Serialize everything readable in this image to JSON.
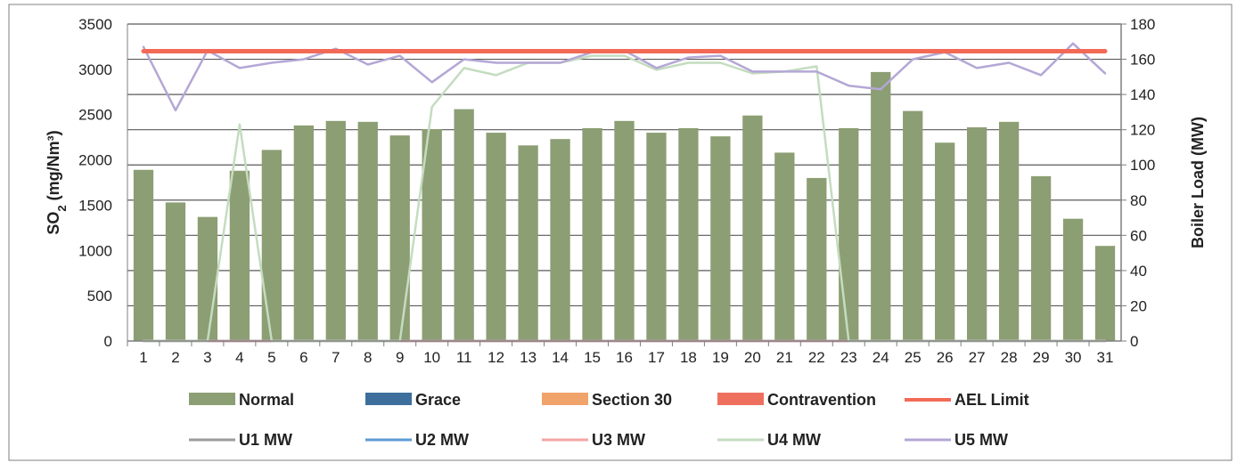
{
  "chart_data": {
    "type": "bar",
    "categories": [
      "1",
      "2",
      "3",
      "4",
      "5",
      "6",
      "7",
      "8",
      "9",
      "10",
      "11",
      "12",
      "13",
      "14",
      "15",
      "16",
      "17",
      "18",
      "19",
      "20",
      "21",
      "22",
      "23",
      "24",
      "25",
      "26",
      "27",
      "28",
      "29",
      "30",
      "31"
    ],
    "y_left": {
      "label_main": "SO",
      "label_sub": "2",
      "label_tail": " (mg/Nm³)",
      "lim": [
        0,
        3500
      ],
      "ticks": [
        "0",
        "500",
        "1000",
        "1500",
        "2000",
        "2500",
        "3000",
        "3500"
      ]
    },
    "y_right": {
      "label": "Boiler Load (MW)",
      "lim": [
        0,
        180
      ],
      "ticks": [
        "0",
        "20",
        "40",
        "60",
        "80",
        "100",
        "120",
        "140",
        "160",
        "180"
      ]
    },
    "grid": true,
    "legend_placement": "bottom",
    "bar_series": [
      {
        "name": "Normal",
        "color": "#8c9e73",
        "values": [
          1890,
          1530,
          1370,
          1880,
          2110,
          2380,
          2430,
          2420,
          2270,
          2340,
          2560,
          2300,
          2160,
          2230,
          2350,
          2430,
          2300,
          2350,
          2260,
          2490,
          2080,
          1800,
          2350,
          2970,
          2540,
          2190,
          2360,
          2420,
          1820,
          1350,
          1050
        ]
      },
      {
        "name": "Grace",
        "color": "#3d6e9c",
        "values": []
      },
      {
        "name": "Section 30",
        "color": "#f0a36a",
        "values": []
      },
      {
        "name": "Contravention",
        "color": "#ef6f5f",
        "values": []
      }
    ],
    "line_series": [
      {
        "name": "AEL Limit",
        "axis": "left",
        "color": "#f26a55",
        "width": 5,
        "values": [
          3200,
          3200,
          3200,
          3200,
          3200,
          3200,
          3200,
          3200,
          3200,
          3200,
          3200,
          3200,
          3200,
          3200,
          3200,
          3200,
          3200,
          3200,
          3200,
          3200,
          3200,
          3200,
          3200,
          3200,
          3200,
          3200,
          3200,
          3200,
          3200,
          3200,
          3200
        ]
      },
      {
        "name": "U1 MW",
        "axis": "right",
        "color": "#9b9b9b",
        "width": 2.5,
        "values": [
          0,
          0,
          0,
          0,
          0,
          0,
          0,
          0,
          0,
          0,
          0,
          0,
          0,
          0,
          0,
          0,
          0,
          0,
          0,
          0,
          0,
          0,
          0,
          0,
          0,
          0,
          0,
          0,
          0,
          0,
          0
        ]
      },
      {
        "name": "U2 MW",
        "axis": "right",
        "color": "#5b9bd5",
        "width": 2.5,
        "values": [
          0,
          0,
          0,
          0,
          0,
          0,
          0,
          0,
          0,
          0,
          0,
          0,
          0,
          0,
          0,
          0,
          0,
          0,
          0,
          0,
          0,
          0,
          0,
          0,
          0,
          0,
          0,
          0,
          0,
          0,
          0
        ]
      },
      {
        "name": "U3 MW",
        "axis": "right",
        "color": "#f4a5a5",
        "width": 2.5,
        "values": [
          0,
          0,
          0,
          0,
          0,
          0,
          0,
          0,
          0,
          0,
          0,
          0,
          0,
          0,
          0,
          0,
          0,
          0,
          0,
          0,
          0,
          0,
          0,
          0,
          0,
          0,
          0,
          0,
          0,
          0,
          0
        ]
      },
      {
        "name": "U4 MW",
        "axis": "right",
        "color": "#c4dcc0",
        "width": 2.5,
        "values": [
          0,
          0,
          0,
          123,
          0,
          0,
          0,
          0,
          0,
          133,
          155,
          151,
          158,
          158,
          162,
          162,
          154,
          158,
          158,
          152,
          153,
          156,
          0,
          0,
          0,
          0,
          0,
          0,
          0,
          0,
          0
        ]
      },
      {
        "name": "U5 MW",
        "axis": "right",
        "color": "#b4a7d6",
        "width": 2.5,
        "values": [
          167,
          131,
          165,
          155,
          158,
          160,
          166,
          157,
          162,
          147,
          160,
          158,
          158,
          158,
          164,
          165,
          155,
          161,
          162,
          153,
          153,
          153,
          145,
          143,
          160,
          164,
          155,
          158,
          151,
          169,
          152
        ]
      }
    ],
    "legend_rows": [
      [
        "Normal",
        "Grace",
        "Section 30",
        "Contravention",
        "AEL Limit"
      ],
      [
        "U1 MW",
        "U2 MW",
        "U3 MW",
        "U4 MW",
        "U5 MW"
      ]
    ]
  }
}
